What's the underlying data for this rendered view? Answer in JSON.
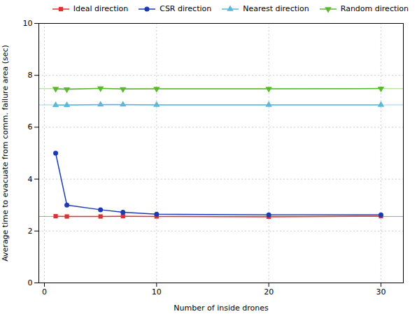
{
  "chart_data": {
    "type": "line",
    "xlabel": "Number of inside drones",
    "ylabel": "Average time to evacuate from comm. failure area (sec)",
    "x": [
      1,
      2,
      5,
      7,
      10,
      20,
      30
    ],
    "series": [
      {
        "name": "Ideal direction",
        "color": "#e03030",
        "marker": "square",
        "values": [
          2.57,
          2.56,
          2.56,
          2.57,
          2.56,
          2.55,
          2.57
        ],
        "reference_y": 2.56
      },
      {
        "name": "CSR direction",
        "color": "#1a3bb5",
        "marker": "circle",
        "values": [
          5.0,
          3.0,
          2.82,
          2.72,
          2.65,
          2.62,
          2.62
        ]
      },
      {
        "name": "Nearest direction",
        "color": "#5ab8d8",
        "marker": "triangle-up",
        "values": [
          6.85,
          6.85,
          6.87,
          6.87,
          6.86,
          6.86,
          6.86
        ],
        "reference_y": 6.86
      },
      {
        "name": "Random direction",
        "color": "#5cb830",
        "marker": "triangle-down",
        "values": [
          7.48,
          7.46,
          7.5,
          7.47,
          7.48,
          7.48,
          7.49
        ],
        "reference_y": 7.485
      }
    ],
    "xlim": [
      -0.5,
      32
    ],
    "ylim": [
      0,
      10
    ],
    "xticks": [
      0,
      10,
      20,
      30
    ],
    "yticks": [
      0,
      2,
      4,
      6,
      8,
      10
    ],
    "grid": true,
    "legend": "upper right"
  }
}
